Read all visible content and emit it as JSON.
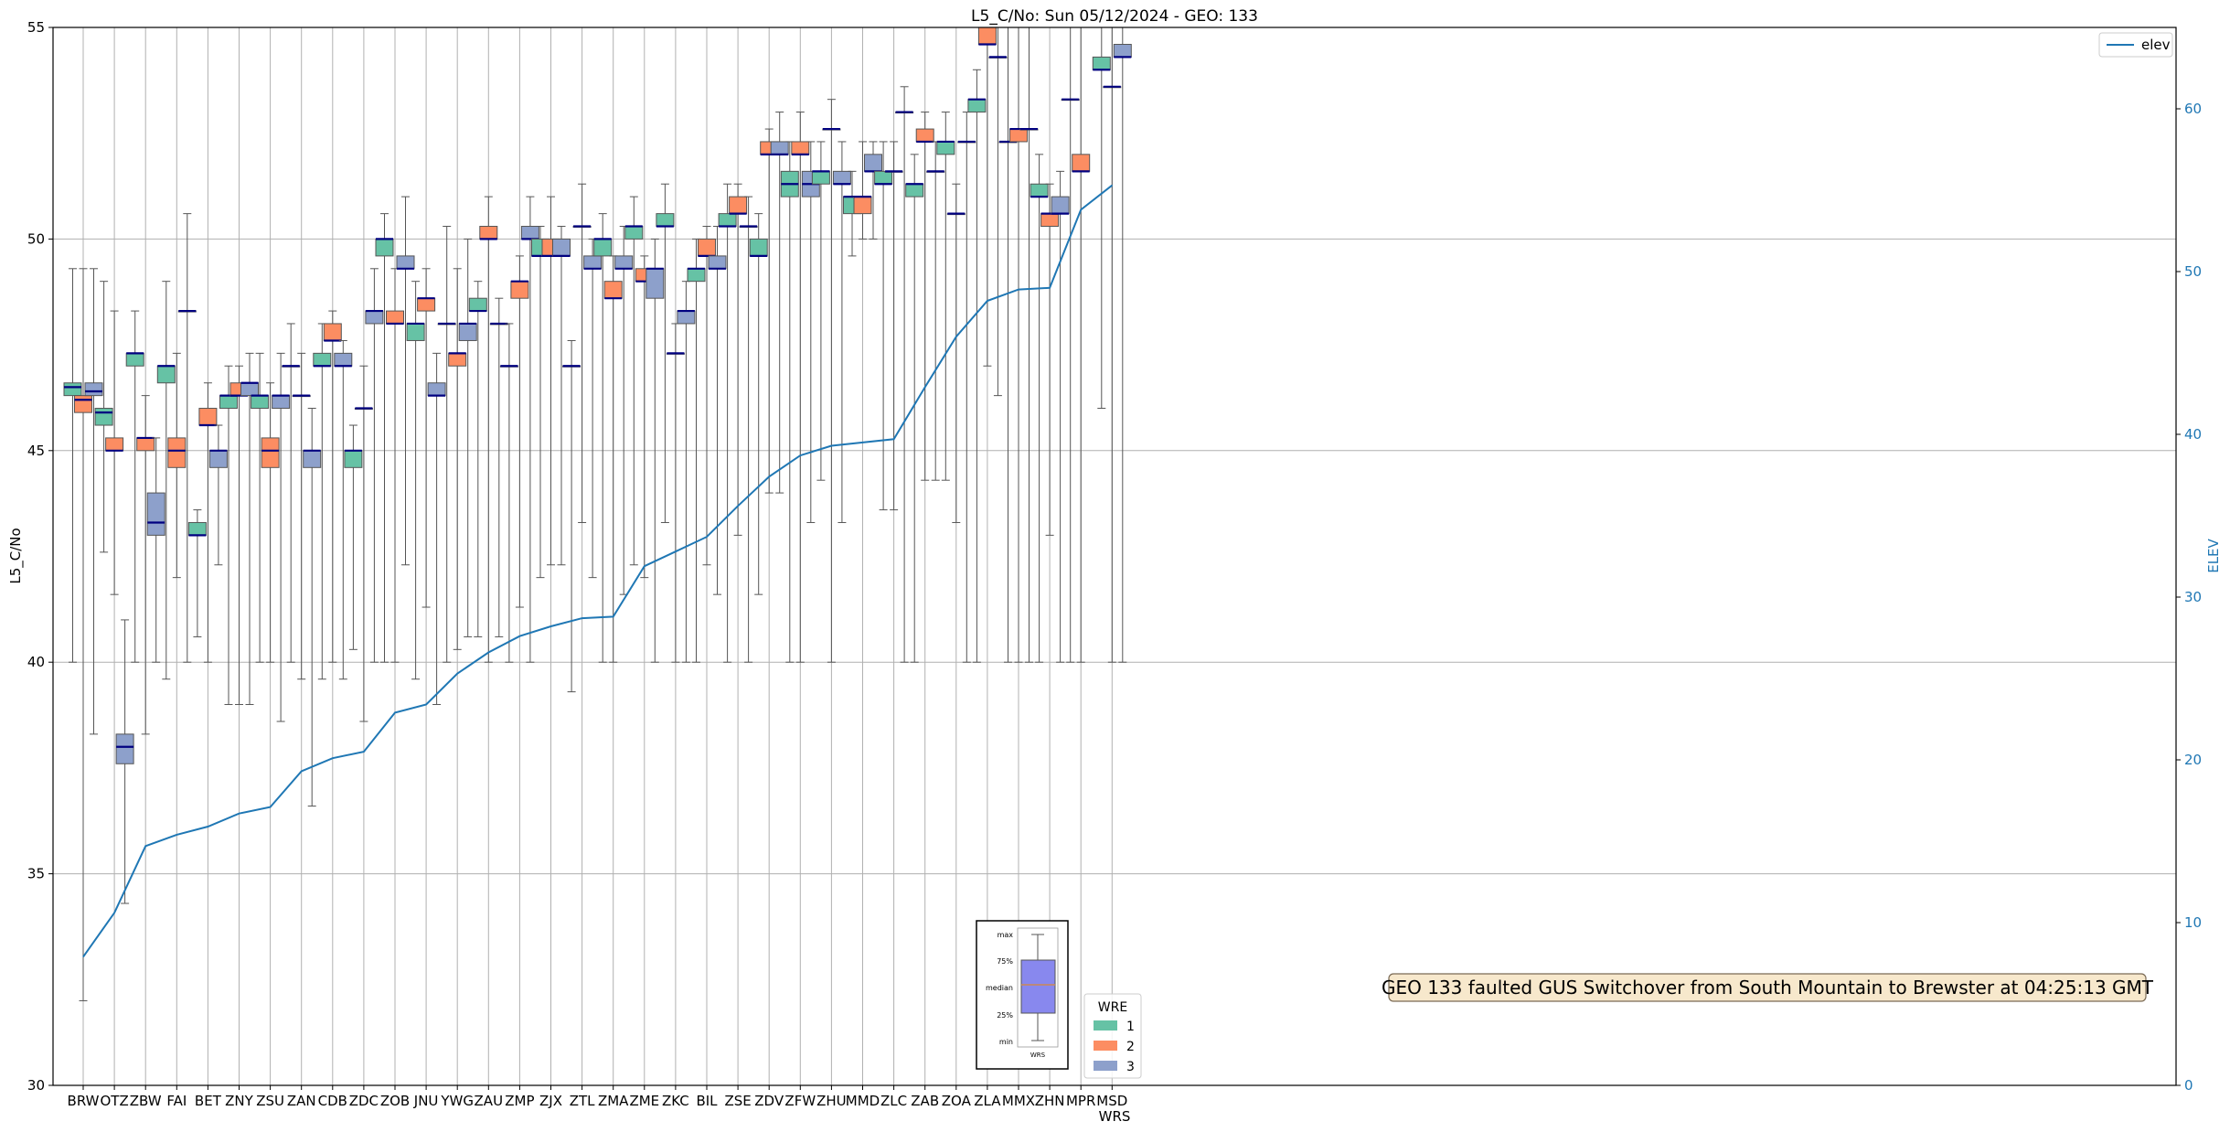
{
  "chart_data": {
    "type": "box",
    "title": "L5_C/No: Sun 05/12/2024 - GEO: 133",
    "xlabel": "WRS",
    "ylabel": "L5_C/No",
    "ylabel_right": "ELEV",
    "ylim": [
      30,
      55
    ],
    "ylim_right": [
      0,
      65
    ],
    "yticks": [
      "30",
      "35",
      "40",
      "45",
      "50",
      "55"
    ],
    "yticks_right": [
      "0",
      "10",
      "20",
      "30",
      "40",
      "50",
      "60"
    ],
    "grid": true,
    "categories": [
      "BRW",
      "OTZ",
      "ZBW",
      "FAI",
      "BET",
      "ZNY",
      "ZSU",
      "ZAN",
      "CDB",
      "ZDC",
      "ZOB",
      "JNU",
      "YWG",
      "ZAU",
      "ZMP",
      "ZJX",
      "ZTL",
      "ZMA",
      "ZME",
      "ZKC",
      "BIL",
      "ZSE",
      "ZDV",
      "ZFW",
      "ZHU",
      "MMD",
      "ZLC",
      "ZAB",
      "ZOA",
      "ZLA",
      "MMX",
      "ZHN",
      "MPR",
      "MSD"
    ],
    "series_colors": {
      "1": "#66c2a5",
      "2": "#fc8d62",
      "3": "#8da0cb"
    },
    "boxes": [
      {
        "station": "BRW",
        "wre": 1,
        "whislo": 40,
        "q1": 46.3,
        "med": 46.5,
        "q3": 46.6,
        "whishi": 49.3
      },
      {
        "station": "BRW",
        "wre": 2,
        "whislo": 32,
        "q1": 45.9,
        "med": 46.2,
        "q3": 46.3,
        "whishi": 49.3
      },
      {
        "station": "BRW",
        "wre": 3,
        "whislo": 38.3,
        "q1": 46.3,
        "med": 46.4,
        "q3": 46.6,
        "whishi": 49.3
      },
      {
        "station": "OTZ",
        "wre": 1,
        "whislo": 42.6,
        "q1": 45.6,
        "med": 45.9,
        "q3": 46.0,
        "whishi": 49.0
      },
      {
        "station": "OTZ",
        "wre": 2,
        "whislo": 41.6,
        "q1": 45.0,
        "med": 45.0,
        "q3": 45.3,
        "whishi": 48.3
      },
      {
        "station": "OTZ",
        "wre": 3,
        "whislo": 34.3,
        "q1": 37.6,
        "med": 38.0,
        "q3": 38.3,
        "whishi": 41.0
      },
      {
        "station": "ZBW",
        "wre": 1,
        "whislo": 40,
        "q1": 47.0,
        "med": 47.3,
        "q3": 47.3,
        "whishi": 48.3
      },
      {
        "station": "ZBW",
        "wre": 2,
        "whislo": 38.3,
        "q1": 45.0,
        "med": 45.3,
        "q3": 45.3,
        "whishi": 46.3
      },
      {
        "station": "ZBW",
        "wre": 3,
        "whislo": 40,
        "q1": 43.0,
        "med": 43.3,
        "q3": 44.0,
        "whishi": 45.3
      },
      {
        "station": "FAI",
        "wre": 1,
        "whislo": 39.6,
        "q1": 46.6,
        "med": 47.0,
        "q3": 47.0,
        "whishi": 49.0
      },
      {
        "station": "FAI",
        "wre": 2,
        "whislo": 42.0,
        "q1": 44.6,
        "med": 45.0,
        "q3": 45.3,
        "whishi": 47.3
      },
      {
        "station": "FAI",
        "wre": 3,
        "whislo": 40,
        "q1": 48.3,
        "med": 48.3,
        "q3": 48.3,
        "whishi": 50.6
      },
      {
        "station": "BET",
        "wre": 1,
        "whislo": 40.6,
        "q1": 43.0,
        "med": 43.0,
        "q3": 43.3,
        "whishi": 43.6
      },
      {
        "station": "BET",
        "wre": 2,
        "whislo": 40,
        "q1": 45.6,
        "med": 45.6,
        "q3": 46.0,
        "whishi": 46.6
      },
      {
        "station": "BET",
        "wre": 3,
        "whislo": 42.3,
        "q1": 44.6,
        "med": 45.0,
        "q3": 45.0,
        "whishi": 45.6
      },
      {
        "station": "ZNY",
        "wre": 1,
        "whislo": 39.0,
        "q1": 46.0,
        "med": 46.3,
        "q3": 46.3,
        "whishi": 47.0
      },
      {
        "station": "ZNY",
        "wre": 2,
        "whislo": 39.0,
        "q1": 46.3,
        "med": 46.3,
        "q3": 46.6,
        "whishi": 47.0
      },
      {
        "station": "ZNY",
        "wre": 3,
        "whislo": 39.0,
        "q1": 46.3,
        "med": 46.6,
        "q3": 46.6,
        "whishi": 47.3
      },
      {
        "station": "ZSU",
        "wre": 1,
        "whislo": 40,
        "q1": 46.0,
        "med": 46.3,
        "q3": 46.3,
        "whishi": 47.3
      },
      {
        "station": "ZSU",
        "wre": 2,
        "whislo": 40,
        "q1": 44.6,
        "med": 45.0,
        "q3": 45.3,
        "whishi": 46.6
      },
      {
        "station": "ZSU",
        "wre": 3,
        "whislo": 38.6,
        "q1": 46.0,
        "med": 46.3,
        "q3": 46.3,
        "whishi": 47.3
      },
      {
        "station": "ZAN",
        "wre": 1,
        "whislo": 40,
        "q1": 47.0,
        "med": 47.0,
        "q3": 47.0,
        "whishi": 48.0
      },
      {
        "station": "ZAN",
        "wre": 2,
        "whislo": 39.6,
        "q1": 46.3,
        "med": 46.3,
        "q3": 46.3,
        "whishi": 47.3
      },
      {
        "station": "ZAN",
        "wre": 3,
        "whislo": 36.6,
        "q1": 44.6,
        "med": 45.0,
        "q3": 45.0,
        "whishi": 46.0
      },
      {
        "station": "CDB",
        "wre": 1,
        "whislo": 39.6,
        "q1": 47.0,
        "med": 47.0,
        "q3": 47.3,
        "whishi": 48.0
      },
      {
        "station": "CDB",
        "wre": 2,
        "whislo": 40,
        "q1": 47.6,
        "med": 47.6,
        "q3": 48.0,
        "whishi": 48.3
      },
      {
        "station": "CDB",
        "wre": 3,
        "whislo": 39.6,
        "q1": 47.0,
        "med": 47.0,
        "q3": 47.3,
        "whishi": 47.6
      },
      {
        "station": "ZDC",
        "wre": 1,
        "whislo": 40.3,
        "q1": 44.6,
        "med": 45.0,
        "q3": 45.0,
        "whishi": 45.6
      },
      {
        "station": "ZDC",
        "wre": 2,
        "whislo": 38.6,
        "q1": 46.0,
        "med": 46.0,
        "q3": 46.0,
        "whishi": 47.0
      },
      {
        "station": "ZDC",
        "wre": 3,
        "whislo": 40,
        "q1": 48.0,
        "med": 48.3,
        "q3": 48.3,
        "whishi": 49.3
      },
      {
        "station": "ZOB",
        "wre": 1,
        "whislo": 40,
        "q1": 49.6,
        "med": 50.0,
        "q3": 50.0,
        "whishi": 50.6
      },
      {
        "station": "ZOB",
        "wre": 2,
        "whislo": 40,
        "q1": 48.0,
        "med": 48.0,
        "q3": 48.3,
        "whishi": 49.3
      },
      {
        "station": "ZOB",
        "wre": 3,
        "whislo": 42.3,
        "q1": 49.3,
        "med": 49.3,
        "q3": 49.6,
        "whishi": 51.0
      },
      {
        "station": "JNU",
        "wre": 1,
        "whislo": 39.6,
        "q1": 47.6,
        "med": 48.0,
        "q3": 48.0,
        "whishi": 49.0
      },
      {
        "station": "JNU",
        "wre": 2,
        "whislo": 41.3,
        "q1": 48.3,
        "med": 48.6,
        "q3": 48.6,
        "whishi": 49.3
      },
      {
        "station": "JNU",
        "wre": 3,
        "whislo": 39.0,
        "q1": 46.3,
        "med": 46.3,
        "q3": 46.6,
        "whishi": 47.3
      },
      {
        "station": "YWG",
        "wre": 1,
        "whislo": 40,
        "q1": 48.0,
        "med": 48.0,
        "q3": 48.0,
        "whishi": 50.3
      },
      {
        "station": "YWG",
        "wre": 2,
        "whislo": 40.3,
        "q1": 47.0,
        "med": 47.3,
        "q3": 47.3,
        "whishi": 49.3
      },
      {
        "station": "YWG",
        "wre": 3,
        "whislo": 40.6,
        "q1": 47.6,
        "med": 48.0,
        "q3": 48.0,
        "whishi": 50.0
      },
      {
        "station": "ZAU",
        "wre": 1,
        "whislo": 40.6,
        "q1": 48.3,
        "med": 48.3,
        "q3": 48.6,
        "whishi": 49.0
      },
      {
        "station": "ZAU",
        "wre": 2,
        "whislo": 40,
        "q1": 50.0,
        "med": 50.0,
        "q3": 50.3,
        "whishi": 51.0
      },
      {
        "station": "ZAU",
        "wre": 3,
        "whislo": 40.6,
        "q1": 48.0,
        "med": 48.0,
        "q3": 48.0,
        "whishi": 48.6
      },
      {
        "station": "ZMP",
        "wre": 1,
        "whislo": 40,
        "q1": 47.0,
        "med": 47.0,
        "q3": 47.0,
        "whishi": 48.0
      },
      {
        "station": "ZMP",
        "wre": 2,
        "whislo": 41.3,
        "q1": 48.6,
        "med": 49.0,
        "q3": 49.0,
        "whishi": 49.6
      },
      {
        "station": "ZMP",
        "wre": 3,
        "whislo": 40,
        "q1": 50.0,
        "med": 50.0,
        "q3": 50.3,
        "whishi": 51.0
      },
      {
        "station": "ZJX",
        "wre": 1,
        "whislo": 42.0,
        "q1": 49.6,
        "med": 49.6,
        "q3": 50.0,
        "whishi": 50.3
      },
      {
        "station": "ZJX",
        "wre": 2,
        "whislo": 42.3,
        "q1": 49.6,
        "med": 49.6,
        "q3": 50.0,
        "whishi": 51.0
      },
      {
        "station": "ZJX",
        "wre": 3,
        "whislo": 42.3,
        "q1": 49.6,
        "med": 49.6,
        "q3": 50.0,
        "whishi": 50.3
      },
      {
        "station": "ZTL",
        "wre": 1,
        "whislo": 39.3,
        "q1": 47.0,
        "med": 47.0,
        "q3": 47.0,
        "whishi": 47.6
      },
      {
        "station": "ZTL",
        "wre": 2,
        "whislo": 43.3,
        "q1": 50.3,
        "med": 50.3,
        "q3": 50.3,
        "whishi": 51.3
      },
      {
        "station": "ZTL",
        "wre": 3,
        "whislo": 42.0,
        "q1": 49.3,
        "med": 49.3,
        "q3": 49.6,
        "whishi": 50.0
      },
      {
        "station": "ZMA",
        "wre": 1,
        "whislo": 40,
        "q1": 49.6,
        "med": 50.0,
        "q3": 50.0,
        "whishi": 50.6
      },
      {
        "station": "ZMA",
        "wre": 2,
        "whislo": 40,
        "q1": 48.6,
        "med": 48.6,
        "q3": 49.0,
        "whishi": 49.6
      },
      {
        "station": "ZMA",
        "wre": 3,
        "whislo": 41.6,
        "q1": 49.3,
        "med": 49.3,
        "q3": 49.6,
        "whishi": 50.3
      },
      {
        "station": "ZME",
        "wre": 1,
        "whislo": 42.3,
        "q1": 50.0,
        "med": 50.3,
        "q3": 50.3,
        "whishi": 51.0
      },
      {
        "station": "ZME",
        "wre": 2,
        "whislo": 42.0,
        "q1": 49.0,
        "med": 49.0,
        "q3": 49.3,
        "whishi": 49.6
      },
      {
        "station": "ZME",
        "wre": 3,
        "whislo": 40,
        "q1": 48.6,
        "med": 49.3,
        "q3": 49.3,
        "whishi": 50.0
      },
      {
        "station": "ZKC",
        "wre": 1,
        "whislo": 43.3,
        "q1": 50.3,
        "med": 50.3,
        "q3": 50.6,
        "whishi": 51.3
      },
      {
        "station": "ZKC",
        "wre": 2,
        "whislo": 40,
        "q1": 47.3,
        "med": 47.3,
        "q3": 47.3,
        "whishi": 48.0
      },
      {
        "station": "ZKC",
        "wre": 3,
        "whislo": 40,
        "q1": 48.0,
        "med": 48.3,
        "q3": 48.3,
        "whishi": 49.0
      },
      {
        "station": "BIL",
        "wre": 1,
        "whislo": 40,
        "q1": 49.0,
        "med": 49.3,
        "q3": 49.3,
        "whishi": 50.0
      },
      {
        "station": "BIL",
        "wre": 2,
        "whislo": 42.3,
        "q1": 49.6,
        "med": 49.6,
        "q3": 50.0,
        "whishi": 50.3
      },
      {
        "station": "BIL",
        "wre": 3,
        "whislo": 41.6,
        "q1": 49.3,
        "med": 49.3,
        "q3": 49.6,
        "whishi": 50.3
      },
      {
        "station": "ZSE",
        "wre": 1,
        "whislo": 40,
        "q1": 50.3,
        "med": 50.3,
        "q3": 50.6,
        "whishi": 51.3
      },
      {
        "station": "ZSE",
        "wre": 2,
        "whislo": 43.0,
        "q1": 50.6,
        "med": 50.6,
        "q3": 51.0,
        "whishi": 51.3
      },
      {
        "station": "ZSE",
        "wre": 3,
        "whislo": 40,
        "q1": 50.3,
        "med": 50.3,
        "q3": 50.3,
        "whishi": 51.0
      },
      {
        "station": "ZDV",
        "wre": 1,
        "whislo": 41.6,
        "q1": 49.6,
        "med": 49.6,
        "q3": 50.0,
        "whishi": 50.6
      },
      {
        "station": "ZDV",
        "wre": 2,
        "whislo": 44.0,
        "q1": 52.0,
        "med": 52.0,
        "q3": 52.3,
        "whishi": 52.6
      },
      {
        "station": "ZDV",
        "wre": 3,
        "whislo": 44.0,
        "q1": 52.0,
        "med": 52.0,
        "q3": 52.3,
        "whishi": 53.0
      },
      {
        "station": "ZFW",
        "wre": 1,
        "whislo": 40,
        "q1": 51.0,
        "med": 51.3,
        "q3": 51.6,
        "whishi": 52.3
      },
      {
        "station": "ZFW",
        "wre": 2,
        "whislo": 40,
        "q1": 52.0,
        "med": 52.0,
        "q3": 52.3,
        "whishi": 53.0
      },
      {
        "station": "ZFW",
        "wre": 3,
        "whislo": 43.3,
        "q1": 51.0,
        "med": 51.3,
        "q3": 51.6,
        "whishi": 52.3
      },
      {
        "station": "ZHU",
        "wre": 1,
        "whislo": 44.3,
        "q1": 51.3,
        "med": 51.6,
        "q3": 51.6,
        "whishi": 52.3
      },
      {
        "station": "ZHU",
        "wre": 2,
        "whislo": 40,
        "q1": 52.6,
        "med": 52.6,
        "q3": 52.6,
        "whishi": 53.3
      },
      {
        "station": "ZHU",
        "wre": 3,
        "whislo": 43.3,
        "q1": 51.3,
        "med": 51.3,
        "q3": 51.6,
        "whishi": 52.3
      },
      {
        "station": "MMD",
        "wre": 1,
        "whislo": 49.6,
        "q1": 50.6,
        "med": 51.0,
        "q3": 51.0,
        "whishi": 51.6
      },
      {
        "station": "MMD",
        "wre": 2,
        "whislo": 50.0,
        "q1": 50.6,
        "med": 51.0,
        "q3": 51.0,
        "whishi": 52.3
      },
      {
        "station": "MMD",
        "wre": 3,
        "whislo": 50.0,
        "q1": 51.6,
        "med": 51.6,
        "q3": 52.0,
        "whishi": 52.3
      },
      {
        "station": "ZLC",
        "wre": 1,
        "whislo": 43.6,
        "q1": 51.3,
        "med": 51.3,
        "q3": 51.6,
        "whishi": 52.3
      },
      {
        "station": "ZLC",
        "wre": 2,
        "whislo": 43.6,
        "q1": 51.6,
        "med": 51.6,
        "q3": 51.6,
        "whishi": 52.3
      },
      {
        "station": "ZLC",
        "wre": 3,
        "whislo": 40,
        "q1": 53.0,
        "med": 53.0,
        "q3": 53.0,
        "whishi": 53.6
      },
      {
        "station": "ZAB",
        "wre": 1,
        "whislo": 40,
        "q1": 51.0,
        "med": 51.3,
        "q3": 51.3,
        "whishi": 52.0
      },
      {
        "station": "ZAB",
        "wre": 2,
        "whislo": 44.3,
        "q1": 52.3,
        "med": 52.3,
        "q3": 52.6,
        "whishi": 53.0
      },
      {
        "station": "ZAB",
        "wre": 3,
        "whislo": 44.3,
        "q1": 51.6,
        "med": 51.6,
        "q3": 51.6,
        "whishi": 52.3
      },
      {
        "station": "ZOA",
        "wre": 1,
        "whislo": 44.3,
        "q1": 52.0,
        "med": 52.3,
        "q3": 52.3,
        "whishi": 53.0
      },
      {
        "station": "ZOA",
        "wre": 2,
        "whislo": 43.3,
        "q1": 50.6,
        "med": 50.6,
        "q3": 50.6,
        "whishi": 51.3
      },
      {
        "station": "ZOA",
        "wre": 3,
        "whislo": 40,
        "q1": 52.3,
        "med": 52.3,
        "q3": 52.3,
        "whishi": 53.0
      },
      {
        "station": "ZLA",
        "wre": 1,
        "whislo": 40,
        "q1": 53.0,
        "med": 53.3,
        "q3": 53.3,
        "whishi": 54.0
      },
      {
        "station": "ZLA",
        "wre": 2,
        "whislo": 47.0,
        "q1": 54.6,
        "med": 54.6,
        "q3": 55.0,
        "whishi": 55.0
      },
      {
        "station": "ZLA",
        "wre": 3,
        "whislo": 46.3,
        "q1": 54.3,
        "med": 54.3,
        "q3": 54.3,
        "whishi": 55.0
      },
      {
        "station": "MMX",
        "wre": 1,
        "whislo": 40,
        "q1": 52.3,
        "med": 52.3,
        "q3": 52.3,
        "whishi": 55.0
      },
      {
        "station": "MMX",
        "wre": 2,
        "whislo": 40,
        "q1": 52.3,
        "med": 52.6,
        "q3": 52.6,
        "whishi": 55.0
      },
      {
        "station": "MMX",
        "wre": 3,
        "whislo": 40,
        "q1": 52.6,
        "med": 52.6,
        "q3": 52.6,
        "whishi": 55.0
      },
      {
        "station": "ZHN",
        "wre": 1,
        "whislo": 40,
        "q1": 51.0,
        "med": 51.0,
        "q3": 51.3,
        "whishi": 52.0
      },
      {
        "station": "ZHN",
        "wre": 2,
        "whislo": 43.0,
        "q1": 50.3,
        "med": 50.6,
        "q3": 50.6,
        "whishi": 51.3
      },
      {
        "station": "ZHN",
        "wre": 3,
        "whislo": 40,
        "q1": 50.6,
        "med": 50.6,
        "q3": 51.0,
        "whishi": 51.6
      },
      {
        "station": "MPR",
        "wre": 1,
        "whislo": 40,
        "q1": 53.3,
        "med": 53.3,
        "q3": 53.3,
        "whishi": 55.0
      },
      {
        "station": "MPR",
        "wre": 2,
        "whislo": 40,
        "q1": 51.6,
        "med": 51.6,
        "q3": 52.0,
        "whishi": 55.0
      },
      {
        "station": "MSD",
        "wre": 1,
        "whislo": 46.0,
        "q1": 54.0,
        "med": 54.0,
        "q3": 54.3,
        "whishi": 55.0
      },
      {
        "station": "MSD",
        "wre": 2,
        "whislo": 40,
        "q1": 53.6,
        "med": 53.6,
        "q3": 53.6,
        "whishi": 55.0
      },
      {
        "station": "MSD",
        "wre": 3,
        "whislo": 40,
        "q1": 54.3,
        "med": 54.3,
        "q3": 54.6,
        "whishi": 55.0
      }
    ],
    "elev_series": {
      "name": "elev",
      "color": "#1f77b4",
      "values": [
        7.9,
        10.6,
        14.7,
        15.4,
        15.9,
        16.7,
        17.1,
        19.3,
        20.1,
        20.5,
        22.9,
        23.4,
        25.3,
        26.6,
        27.6,
        28.2,
        28.7,
        28.8,
        31.9,
        32.8,
        33.7,
        35.6,
        37.4,
        38.7,
        39.3,
        39.5,
        39.7,
        42.9,
        46.0,
        48.2,
        48.9,
        49.0,
        53.8,
        55.3
      ]
    },
    "legend_elev": {
      "label": "elev",
      "position": "top-right"
    },
    "legend_wre": {
      "title": "WRE",
      "entries": [
        {
          "label": "1",
          "color": "#66c2a5"
        },
        {
          "label": "2",
          "color": "#fc8d62"
        },
        {
          "label": "3",
          "color": "#8da0cb"
        }
      ]
    },
    "key_box": {
      "labels": [
        "max",
        "75%",
        "median",
        "25%",
        "min"
      ],
      "caption": "WRS"
    },
    "annotation": "GEO 133 faulted GUS Switchover from South Mountain to Brewster at 04:25:13 GMT"
  }
}
